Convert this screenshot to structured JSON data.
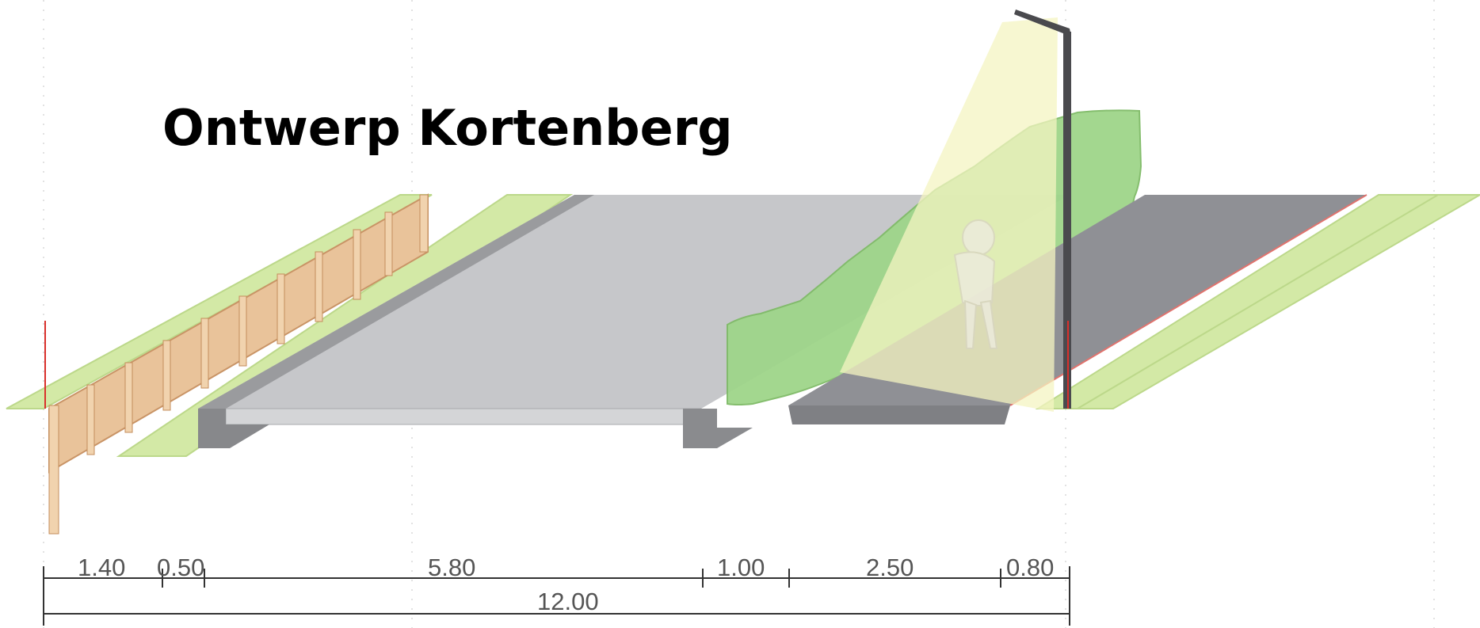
{
  "title": "Ontwerp Kortenberg",
  "colors": {
    "grass": "#cfe6a2",
    "grass_edge": "#b5d47e",
    "fence_wood": "#e6c19a",
    "fence_post": "#d49e6e",
    "road_surface": "#c8c9cc",
    "curb": "#8c8d90",
    "hedge": "#9fd487",
    "bike_path": "#8f8f94",
    "lamp_post": "#4a4a4e",
    "light_cone": "#f6f5c8",
    "dimension_line": "#333333",
    "marker_red": "#d9302c"
  },
  "icons": [
    "fence-icon",
    "hedge-icon",
    "street-lamp-icon",
    "cyclist-icon"
  ],
  "dimensions": {
    "segments": [
      "1.40",
      "0.50",
      "5.80",
      "1.00",
      "2.50",
      "0.80"
    ],
    "total": "12.00"
  }
}
